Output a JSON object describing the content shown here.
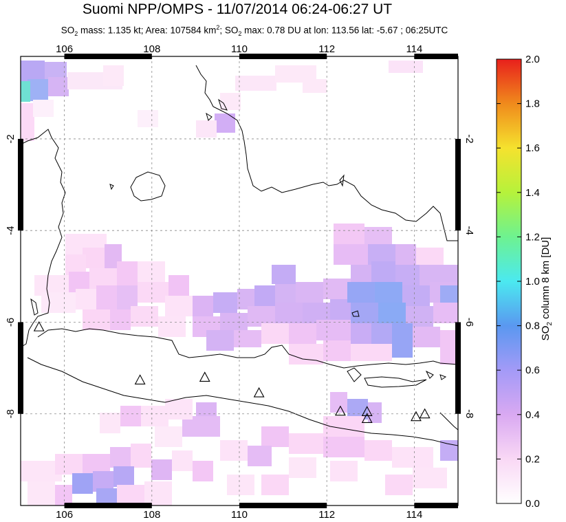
{
  "title": "Suomi NPP/OMPS - 11/07/2014 06:24-06:27 UT",
  "subtitle": {
    "pre": "SO",
    "sub1": "2",
    "mass": " mass: 1.135 kt; Area: 107584 km",
    "sup": "2",
    "mid": "; SO",
    "sub2": "2",
    "post": " max: 0.78 DU at lon: 113.56 lat: -5.67 ; 06:25UTC"
  },
  "map": {
    "lon_range": [
      105,
      115
    ],
    "lat_range": [
      -10,
      -0.2
    ],
    "lon_ticks": [
      "106",
      "108",
      "110",
      "112",
      "114"
    ],
    "lat_ticks": [
      "-2",
      "-4",
      "-6",
      "-8"
    ],
    "volcano_markers": [
      {
        "lon": 105.42,
        "lat": -6.1
      },
      {
        "lon": 107.73,
        "lat": -7.26
      },
      {
        "lon": 109.21,
        "lat": -7.2
      },
      {
        "lon": 110.45,
        "lat": -7.54
      },
      {
        "lon": 112.31,
        "lat": -7.94
      },
      {
        "lon": 112.92,
        "lat": -7.95
      },
      {
        "lon": 112.92,
        "lat": -8.1
      },
      {
        "lon": 114.04,
        "lat": -8.06
      },
      {
        "lon": 114.24,
        "lat": -8.0
      }
    ],
    "colors": {
      "land_outline": "#000000",
      "grid": "#888888",
      "background": "#ffffff"
    }
  },
  "colorbar": {
    "label_pre": "SO",
    "label_sub": "2",
    "label_post": " column 8 km [DU]",
    "min": 0.0,
    "max": 2.0,
    "ticks": [
      "0.0",
      "0.2",
      "0.4",
      "0.6",
      "0.8",
      "1.0",
      "1.2",
      "1.4",
      "1.6",
      "1.8",
      "2.0"
    ],
    "stops": [
      "#ffffff",
      "#f9d8f5",
      "#d9a9f2",
      "#a39af7",
      "#5a98f0",
      "#4be9f0",
      "#6ef290",
      "#b6f23b",
      "#f5e22e",
      "#f08a1c",
      "#e8201c"
    ]
  }
}
